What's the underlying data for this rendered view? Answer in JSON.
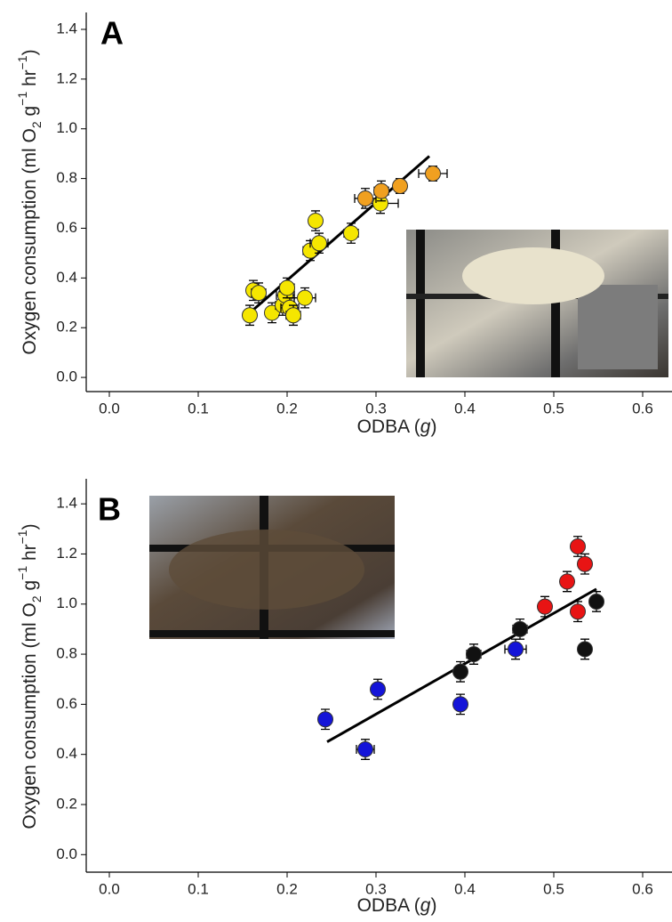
{
  "chart_data": [
    {
      "type": "scatter",
      "panel_label": "A",
      "x_label": [
        "ODBA (",
        "g",
        ")"
      ],
      "y_label": [
        "Oxygen consumption (ml O",
        "2",
        " g",
        "−1",
        " hr",
        "−1",
        ")"
      ],
      "xlim": [
        -0.026,
        0.633
      ],
      "ylim": [
        -0.057,
        1.468
      ],
      "xticks": [
        {
          "value": 0,
          "label": "0.0"
        },
        0.1,
        0.2,
        0.3,
        0.4,
        0.5,
        0.6
      ],
      "yticks": [
        {
          "value": 0,
          "label": "0.0"
        },
        0.2,
        0.4,
        0.6,
        0.8,
        {
          "value": 1,
          "label": "1.0"
        },
        1.2,
        1.4
      ],
      "series": [
        {
          "color": "#f5e600",
          "x": [
            0.158,
            0.162,
            0.168,
            0.183,
            0.195,
            0.198,
            0.2,
            0.203,
            0.207,
            0.22,
            0.226,
            0.232,
            0.236,
            0.272,
            0.305
          ],
          "values": [
            0.25,
            0.35,
            0.34,
            0.26,
            0.29,
            0.33,
            0.36,
            0.28,
            0.25,
            0.32,
            0.51,
            0.63,
            0.54,
            0.58,
            0.7
          ],
          "xerr": [
            0.006,
            0.006,
            0.008,
            0.006,
            0.008,
            0.01,
            0.008,
            0.01,
            0.008,
            0.012,
            0.008,
            0.006,
            0.01,
            0.008,
            0.02
          ],
          "yerr": [
            0.04,
            0.04,
            0.04,
            0.04,
            0.04,
            0.04,
            0.04,
            0.04,
            0.04,
            0.04,
            0.04,
            0.04,
            0.04,
            0.04,
            0.04
          ]
        },
        {
          "color": "#f0a020",
          "x": [
            0.288,
            0.306,
            0.327,
            0.364
          ],
          "values": [
            0.72,
            0.75,
            0.77,
            0.82
          ],
          "xerr": [
            0.012,
            0.008,
            0.006,
            0.016
          ],
          "yerr": [
            0.04,
            0.04,
            0.03,
            0.03
          ]
        }
      ],
      "fit": {
        "x": [
          0.158,
          0.36
        ],
        "values": [
          0.26,
          0.89
        ]
      }
    },
    {
      "type": "scatter",
      "panel_label": "B",
      "x_label": [
        "ODBA (",
        "g",
        ")"
      ],
      "y_label": [
        "Oxygen consumption (ml O",
        "2",
        " g",
        "−1",
        " hr",
        "−1",
        ")"
      ],
      "xlim": [
        -0.026,
        0.633
      ],
      "ylim": [
        -0.07,
        1.5
      ],
      "xticks": [
        {
          "value": 0,
          "label": "0.0"
        },
        0.1,
        0.2,
        0.3,
        0.4,
        0.5,
        0.6
      ],
      "yticks": [
        {
          "value": 0,
          "label": "0.0"
        },
        0.2,
        0.4,
        0.6,
        0.8,
        {
          "value": 1,
          "label": "1.0"
        },
        1.2,
        1.4
      ],
      "series": [
        {
          "color": "#1414d8",
          "x": [
            0.243,
            0.288,
            0.302,
            0.395,
            0.457
          ],
          "values": [
            0.54,
            0.42,
            0.66,
            0.6,
            0.82
          ],
          "xerr": [
            0.006,
            0.01,
            0.006,
            0.006,
            0.012
          ],
          "yerr": [
            0.04,
            0.04,
            0.04,
            0.04,
            0.04
          ]
        },
        {
          "color": "#111111",
          "x": [
            0.395,
            0.41,
            0.462,
            0.535,
            0.548
          ],
          "values": [
            0.73,
            0.8,
            0.9,
            0.82,
            1.01
          ],
          "xerr": [
            0.006,
            0.008,
            0.008,
            0.006,
            0.006
          ],
          "yerr": [
            0.04,
            0.04,
            0.04,
            0.04,
            0.04
          ]
        },
        {
          "color": "#e81414",
          "x": [
            0.49,
            0.515,
            0.527,
            0.535,
            0.527
          ],
          "values": [
            0.99,
            1.09,
            1.23,
            1.16,
            0.97
          ],
          "xerr": [
            0.006,
            0.006,
            0.006,
            0.006,
            0.006
          ],
          "yerr": [
            0.04,
            0.04,
            0.04,
            0.04,
            0.04
          ]
        }
      ],
      "fit": {
        "x": [
          0.245,
          0.548
        ],
        "values": [
          0.45,
          1.06
        ]
      }
    }
  ]
}
